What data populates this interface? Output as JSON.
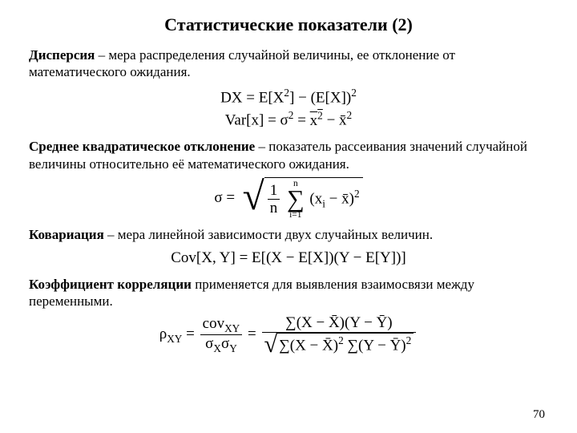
{
  "title": "Статистические показатели (2)",
  "page_number": "70",
  "text_color": "#000000",
  "background_color": "#ffffff",
  "font_family": "Times New Roman",
  "defs": {
    "dispersion_term": "Дисперсия",
    "dispersion_rest": " – мера распределения случайной величины, ее отклонение от математического ожидания.",
    "stddev_term": "Среднее квадратическое отклонение",
    "stddev_rest": " – показатель рассеивания значений случайной величины относительно её математического ожидания.",
    "cov_term": "Ковариация",
    "cov_rest": " – мера линейной зависимости двух случайных величин.",
    "corr_term": "Коэффициент корреляции",
    "corr_rest": " применяется для выявления взаимосвязи между переменными."
  },
  "formulas": {
    "dx_lhs": "DX",
    "dx_rhs_a": "E[X",
    "dx_rhs_b": "] − (E[X])",
    "var_lhs": "Var[x]",
    "sigma2": "σ",
    "x2bar": "x",
    "xbar2": "x̄",
    "sigma": "σ",
    "sigma_frac_num": "1",
    "sigma_frac_den": "n",
    "sum_top": "n",
    "sum_bot": "i=1",
    "sum_body_a": "(x",
    "sum_body_sub": "i",
    "sum_body_b": " − x̄)",
    "cov_lhs": "Cov[X, Y]",
    "cov_rhs": "E[(X − E[X])(Y − E[Y])]",
    "rho_lhs": "ρ",
    "rho_sub": "XY",
    "cov_small": "cov",
    "cov_small_sub": "XY",
    "sx": "σ",
    "sx_sub": "X",
    "sy": "σ",
    "sy_sub": "Y",
    "num_big": "∑(X − X̄)(Y − Ȳ)",
    "den_a": "∑(X − X̄)",
    "den_b": " ∑(Y − Ȳ)"
  }
}
